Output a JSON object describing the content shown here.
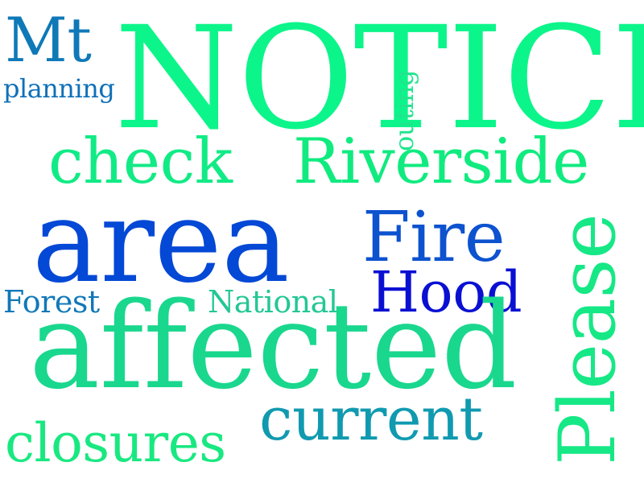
{
  "words": [
    {
      "id": "notice",
      "text": "NOTICE",
      "color": "#0cf58a"
    },
    {
      "id": "mt",
      "text": "Mt",
      "color": "#0f79b8"
    },
    {
      "id": "planning",
      "text": "planning",
      "color": "#0f70b8"
    },
    {
      "id": "outing",
      "text": "outing",
      "color": "#20e58d"
    },
    {
      "id": "check",
      "text": "check",
      "color": "#11eb85"
    },
    {
      "id": "riverside",
      "text": "Riverside",
      "color": "#10eb7f"
    },
    {
      "id": "area",
      "text": "area",
      "color": "#0448d6"
    },
    {
      "id": "fire",
      "text": "Fire",
      "color": "#0d52cf"
    },
    {
      "id": "please",
      "text": "Please",
      "color": "#15e885"
    },
    {
      "id": "forest",
      "text": "Forest",
      "color": "#1178b8"
    },
    {
      "id": "national",
      "text": "National",
      "color": "#23c795"
    },
    {
      "id": "hood",
      "text": "Hood",
      "color": "#0a10d2"
    },
    {
      "id": "affected",
      "text": "affected",
      "color": "#1ad78e"
    },
    {
      "id": "closures",
      "text": "closures",
      "color": "#19e881"
    },
    {
      "id": "current",
      "text": "current",
      "color": "#109ab0"
    }
  ]
}
